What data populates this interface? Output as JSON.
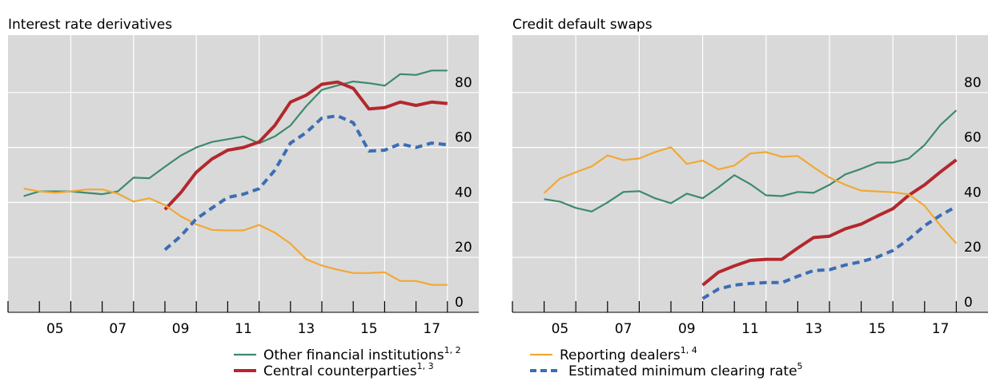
{
  "legend": [
    {
      "name": "Other financial institutions",
      "footnote": "1, 2",
      "color": "#3e8a6c",
      "dash": false
    },
    {
      "name": "Central counterparties",
      "footnote": "1, 3",
      "color": "#b3282d",
      "dash": false
    },
    {
      "name": "Reporting dealers",
      "footnote": "1, 4",
      "color": "#f2a833",
      "dash": false
    },
    {
      "name": "Estimated minimum clearing rate",
      "footnote": "5",
      "color": "#3c6db5",
      "dash": true
    }
  ],
  "chart_data": [
    {
      "type": "line",
      "title": "Interest rate derivatives",
      "x": [
        2004.5,
        2005,
        2005.5,
        2006,
        2006.5,
        2007,
        2007.5,
        2008,
        2008.5,
        2009,
        2009.5,
        2010,
        2010.5,
        2011,
        2011.5,
        2012,
        2012.5,
        2013,
        2013.5,
        2014,
        2014.5,
        2015,
        2015.5,
        2016,
        2016.5,
        2017,
        2017.5,
        2018
      ],
      "xlim": [
        2004,
        2019
      ],
      "xticks": [
        2004,
        2005,
        2006,
        2007,
        2008,
        2009,
        2010,
        2011,
        2012,
        2013,
        2014,
        2015,
        2016,
        2017,
        2018
      ],
      "xticklabels": [
        {
          "value": 2005.5,
          "label": "05"
        },
        {
          "value": 2007.5,
          "label": "07"
        },
        {
          "value": 2009.5,
          "label": "09"
        },
        {
          "value": 2011.5,
          "label": "11"
        },
        {
          "value": 2013.5,
          "label": "13"
        },
        {
          "value": 2015.5,
          "label": "15"
        },
        {
          "value": 2017.5,
          "label": "17"
        }
      ],
      "xgrid": [
        2006,
        2008,
        2010,
        2012,
        2014,
        2016,
        2018
      ],
      "ylim": [
        0,
        100
      ],
      "yticks": [
        0,
        20,
        40,
        60,
        80
      ],
      "grid": true,
      "series": [
        {
          "name": "Other financial institutions",
          "values": [
            42.3,
            44,
            44,
            44,
            43.5,
            43,
            44,
            49,
            48.8,
            53,
            57,
            60,
            62,
            63,
            64,
            61.5,
            64,
            68,
            75,
            81,
            82.6,
            84,
            83.4,
            82.5,
            86.7,
            86.4,
            88,
            88
          ]
        },
        {
          "name": "Central counterparties",
          "values": [
            null,
            null,
            null,
            null,
            null,
            null,
            null,
            null,
            null,
            37.4,
            43.5,
            51,
            55.8,
            59,
            60,
            62,
            68,
            76.5,
            79,
            83,
            83.8,
            81.5,
            74,
            74.5,
            76.5,
            75.3,
            76.5,
            76
          ]
        },
        {
          "name": "Reporting dealers",
          "values": [
            45,
            44,
            43.5,
            44,
            44.7,
            44.7,
            43.2,
            40.3,
            41.5,
            39,
            35,
            32,
            30,
            29.8,
            29.8,
            31.8,
            29,
            25,
            19.3,
            17,
            15.5,
            14.3,
            14.3,
            14.6,
            11.4,
            11.4,
            10,
            10
          ]
        },
        {
          "name": "Estimated minimum clearing rate",
          "values": [
            null,
            null,
            null,
            null,
            null,
            null,
            null,
            null,
            null,
            22.8,
            27.7,
            34,
            38,
            41.8,
            43,
            45,
            51.7,
            61.6,
            65.4,
            70.7,
            71.5,
            69,
            58.7,
            59,
            61.3,
            60,
            61.6,
            61
          ]
        }
      ]
    },
    {
      "type": "line",
      "title": "Credit default swaps",
      "x": [
        2005,
        2005.5,
        2006,
        2006.5,
        2007,
        2007.5,
        2008,
        2008.5,
        2009,
        2009.5,
        2010,
        2010.5,
        2011,
        2011.5,
        2012,
        2012.5,
        2013,
        2013.5,
        2014,
        2014.5,
        2015,
        2015.5,
        2016,
        2016.5,
        2017,
        2017.5,
        2018
      ],
      "xlim": [
        2004,
        2019
      ],
      "xticks": [
        2004,
        2005,
        2006,
        2007,
        2008,
        2009,
        2010,
        2011,
        2012,
        2013,
        2014,
        2015,
        2016,
        2017,
        2018
      ],
      "xticklabels": [
        {
          "value": 2005.5,
          "label": "05"
        },
        {
          "value": 2007.5,
          "label": "07"
        },
        {
          "value": 2009.5,
          "label": "09"
        },
        {
          "value": 2011.5,
          "label": "11"
        },
        {
          "value": 2013.5,
          "label": "13"
        },
        {
          "value": 2015.5,
          "label": "15"
        },
        {
          "value": 2017.5,
          "label": "17"
        }
      ],
      "xgrid": [
        2006,
        2008,
        2010,
        2012,
        2014,
        2016,
        2018
      ],
      "ylim": [
        0,
        100
      ],
      "yticks": [
        0,
        20,
        40,
        60,
        80
      ],
      "grid": true,
      "series": [
        {
          "name": "Other financial institutions",
          "values": [
            41.2,
            40.3,
            38,
            36.7,
            40,
            43.8,
            44.1,
            41.5,
            39.7,
            43.2,
            41.5,
            45.5,
            49.9,
            46.7,
            42.6,
            42.3,
            43.8,
            43.5,
            46.4,
            50.2,
            52.2,
            54.5,
            54.5,
            56,
            60.9,
            68.2,
            73.5
          ]
        },
        {
          "name": "Central counterparties",
          "values": [
            null,
            null,
            null,
            null,
            null,
            null,
            null,
            null,
            null,
            null,
            9.9,
            14.6,
            16.9,
            18.9,
            19.3,
            19.3,
            23.4,
            27.2,
            27.7,
            30.4,
            32.1,
            35,
            37.7,
            42.6,
            46.4,
            51.1,
            55.5
          ]
        },
        {
          "name": "Reporting dealers",
          "values": [
            43.4,
            48.7,
            51,
            53.1,
            57.1,
            55.4,
            56,
            58.3,
            60.1,
            54,
            55.2,
            52,
            53.4,
            57.8,
            58.3,
            56.6,
            56.9,
            52.8,
            49,
            46.4,
            44.3,
            44,
            43.7,
            42.9,
            38.8,
            31.5,
            25.1
          ]
        },
        {
          "name": "Estimated minimum clearing rate",
          "values": [
            null,
            null,
            null,
            null,
            null,
            null,
            null,
            null,
            null,
            null,
            5,
            8.5,
            9.9,
            10.5,
            10.8,
            10.8,
            13.1,
            15.2,
            15.5,
            17.2,
            18.4,
            20.1,
            22.5,
            26.6,
            31.5,
            35.3,
            38.5
          ]
        }
      ]
    }
  ]
}
